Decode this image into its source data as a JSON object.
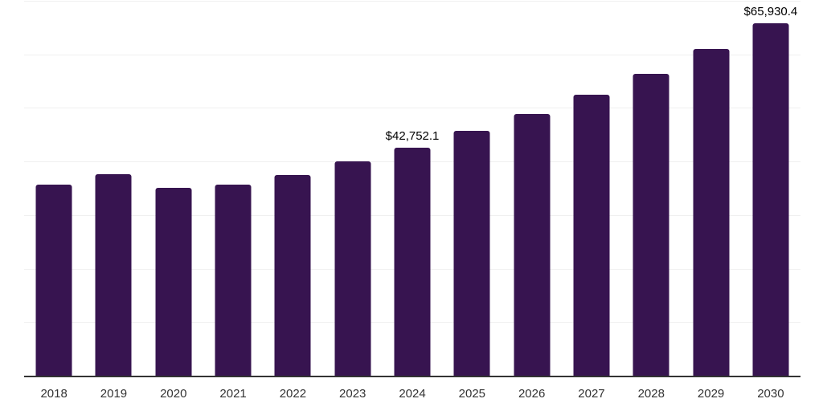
{
  "chart_data": {
    "type": "bar",
    "title": "",
    "xlabel": "",
    "ylabel": "",
    "ylim": [
      0,
      70000
    ],
    "gridline_interval": 10000,
    "grid": "horizontal",
    "legend": "none",
    "y_axis_tick_labels": "none",
    "categories": [
      "2018",
      "2019",
      "2020",
      "2021",
      "2022",
      "2023",
      "2024",
      "2025",
      "2026",
      "2027",
      "2028",
      "2029",
      "2030"
    ],
    "points": [
      {
        "category": "2018",
        "value": 35900
      },
      {
        "category": "2019",
        "value": 37800
      },
      {
        "category": "2020",
        "value": 35200
      },
      {
        "category": "2021",
        "value": 35800
      },
      {
        "category": "2022",
        "value": 37700
      },
      {
        "category": "2023",
        "value": 40100
      },
      {
        "category": "2024",
        "value": 42752.1,
        "label": "$42,752.1"
      },
      {
        "category": "2025",
        "value": 45800
      },
      {
        "category": "2026",
        "value": 49000
      },
      {
        "category": "2027",
        "value": 52600
      },
      {
        "category": "2028",
        "value": 56500
      },
      {
        "category": "2029",
        "value": 61100
      },
      {
        "category": "2030",
        "value": 65930.4,
        "label": "$65,930.4"
      }
    ],
    "colors": {
      "bar": "#371450",
      "axis_line": "#333333",
      "gridline": "#f0f0f0",
      "data_label": "#000000",
      "tick_label": "#333333",
      "background": "#ffffff"
    }
  }
}
